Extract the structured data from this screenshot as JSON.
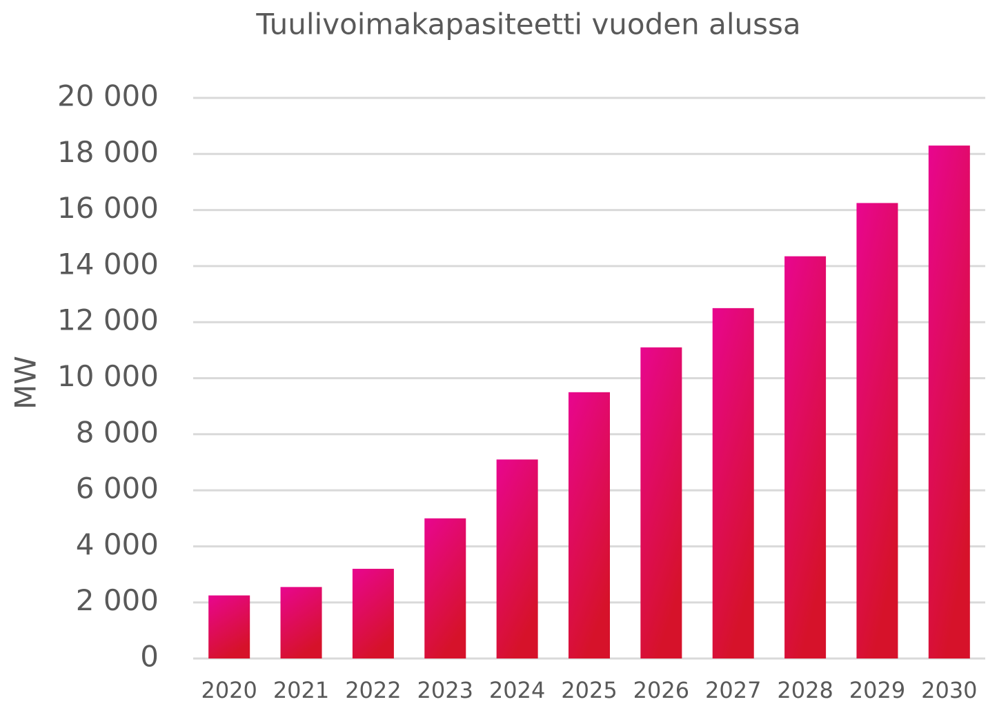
{
  "chart_data": {
    "type": "bar",
    "title": "Tuulivoimakapasiteetti vuoden alussa",
    "y_label": "MW",
    "categories": [
      "2020",
      "2021",
      "2022",
      "2023",
      "2024",
      "2025",
      "2026",
      "2027",
      "2028",
      "2029",
      "2030"
    ],
    "values": [
      2250,
      2550,
      3200,
      5000,
      7100,
      9500,
      11100,
      12500,
      14350,
      16250,
      18300
    ],
    "gradient": [
      "#e8068f",
      "#d6122a"
    ],
    "ylim": [
      0,
      20000
    ],
    "yticks": [
      0,
      {
        "value": 2000,
        "label": "2 000"
      },
      {
        "value": 4000,
        "label": "4 000"
      },
      {
        "value": 6000,
        "label": "6 000"
      },
      {
        "value": 8000,
        "label": "8 000"
      },
      {
        "value": 10000,
        "label": "10 000"
      },
      {
        "value": 12000,
        "label": "12 000"
      },
      {
        "value": 14000,
        "label": "14 000"
      },
      {
        "value": 16000,
        "label": "16 000"
      },
      {
        "value": 18000,
        "label": "18 000"
      },
      {
        "value": 20000,
        "label": "20 000"
      }
    ],
    "grid": true
  }
}
